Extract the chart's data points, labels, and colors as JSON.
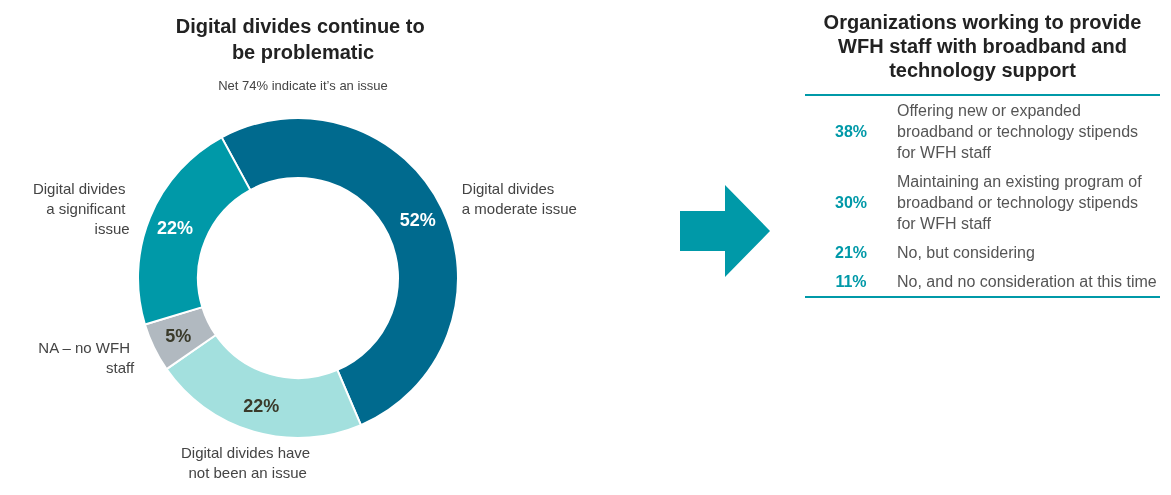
{
  "chart_data": [
    {
      "type": "donut",
      "title": "Digital divides continue to be problematic",
      "subtitle": "Net 74% indicate it’s an issue",
      "categories": [
        "Digital divides a moderate issue",
        "Digital divides have not been an issue",
        "NA – no WFH staff",
        "Digital divides a significant issue"
      ],
      "values": [
        52,
        22,
        5,
        22
      ],
      "colors": [
        "#006a8e",
        "#a3e0de",
        "#b1b9c0",
        "#0099a8"
      ],
      "value_labels": [
        "52%",
        "22%",
        "5%",
        "22%"
      ],
      "legend": false
    },
    {
      "type": "other",
      "title": "Organizations working to provide WFH staff with broadband and technology support",
      "categories": [
        "Offering new or expanded broadband or technology stipends for WFH staff",
        "Maintaining an existing program of broadband or technology stipends for WFH staff",
        "No, but considering",
        "No, and no consideration at this time"
      ],
      "values": [
        38,
        30,
        21,
        11
      ],
      "color": "#0099a8",
      "value_labels": [
        "38%",
        "30%",
        "21%",
        "11%"
      ]
    }
  ]
}
